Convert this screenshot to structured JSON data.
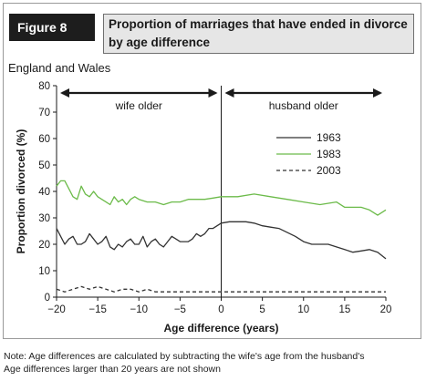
{
  "figure_label": "Figure 8",
  "title_lines": [
    "Proportion of marriages that have ended in divorce",
    "by age difference"
  ],
  "region": "England and Wales",
  "notes": [
    "Note: Age differences are calculated by subtracting the wife's age from the husband's",
    "Age differences larger than 20 years are not shown"
  ],
  "colors": {
    "s1963": "#333333",
    "s1983": "#6cbb4a",
    "s2003": "#333333"
  },
  "chart_data": {
    "type": "line",
    "title": "Proportion of marriages that have ended in divorce by age difference",
    "xlabel": "Age difference (years)",
    "ylabel": "Proportion divorced (%)",
    "xlim": [
      -20,
      20
    ],
    "ylim": [
      0,
      80
    ],
    "xticks": [
      -20,
      -15,
      -10,
      -5,
      0,
      5,
      10,
      15,
      20
    ],
    "xtick_labels": [
      "−20",
      "−15",
      "−10",
      "−5",
      "0",
      "5",
      "10",
      "15",
      "20"
    ],
    "yticks": [
      0,
      10,
      20,
      30,
      40,
      50,
      60,
      70,
      80
    ],
    "grid": false,
    "legend": "right",
    "annotations": [
      {
        "text": "wife older",
        "from": -20,
        "to": 0
      },
      {
        "text": "husband older",
        "from": 0,
        "to": 20
      }
    ],
    "series": [
      {
        "name": "1963",
        "style": "solid",
        "x": [
          -20,
          -19.5,
          -19,
          -18.5,
          -18,
          -17.5,
          -17,
          -16.5,
          -16,
          -15.5,
          -15,
          -14.5,
          -14,
          -13.5,
          -13,
          -12.5,
          -12,
          -11.5,
          -11,
          -10.5,
          -10,
          -9.5,
          -9,
          -8.5,
          -8,
          -7.5,
          -7,
          -6.5,
          -6,
          -5.5,
          -5,
          -4.5,
          -4,
          -3.5,
          -3,
          -2.5,
          -2,
          -1.5,
          -1,
          -0.5,
          0,
          1,
          2,
          3,
          4,
          5,
          6,
          7,
          8,
          9,
          10,
          11,
          12,
          13,
          14,
          15,
          16,
          17,
          18,
          19,
          20
        ],
        "values": [
          26,
          23,
          20,
          22,
          23,
          20,
          20,
          21,
          24,
          22,
          20,
          21,
          23,
          19,
          18,
          20,
          19,
          21,
          22,
          20,
          20,
          23,
          19,
          21,
          22,
          20,
          19,
          21,
          23,
          22,
          21,
          21,
          21,
          22,
          24,
          23,
          24,
          26,
          26,
          27,
          28,
          28.5,
          28.5,
          28.5,
          28,
          27,
          26.5,
          26,
          24.5,
          23,
          21,
          20,
          20,
          20,
          19,
          18,
          17,
          17.5,
          18,
          17,
          14.5
        ]
      },
      {
        "name": "1983",
        "style": "solid",
        "x": [
          -20,
          -19.5,
          -19,
          -18.5,
          -18,
          -17.5,
          -17,
          -16.5,
          -16,
          -15.5,
          -15,
          -14.5,
          -14,
          -13.5,
          -13,
          -12.5,
          -12,
          -11.5,
          -11,
          -10.5,
          -10,
          -9,
          -8,
          -7,
          -6,
          -5,
          -4,
          -3,
          -2,
          -1,
          0,
          2,
          4,
          6,
          8,
          10,
          12,
          14,
          15,
          16,
          17,
          18,
          19,
          19.5,
          20
        ],
        "values": [
          42,
          44,
          44,
          41,
          38,
          37,
          42,
          39,
          38,
          40,
          38,
          37,
          36,
          35,
          38,
          36,
          37,
          35,
          37,
          38,
          37,
          36,
          36,
          35,
          36,
          36,
          37,
          37,
          37,
          37.5,
          38,
          38,
          39,
          38,
          37,
          36,
          35,
          36,
          34,
          34,
          34,
          33,
          31,
          32,
          33
        ]
      },
      {
        "name": "2003",
        "style": "dashed",
        "x": [
          -20,
          -19,
          -18,
          -17,
          -16,
          -15,
          -14,
          -13,
          -12,
          -11,
          -10,
          -9,
          -8,
          -7,
          -6,
          -5,
          -4,
          -3,
          -2,
          -1,
          0,
          2,
          4,
          6,
          8,
          10,
          12,
          14,
          16,
          18,
          20
        ],
        "values": [
          3,
          2,
          3,
          4,
          3,
          4,
          3,
          2,
          3,
          3,
          2,
          3,
          2,
          2,
          2,
          2,
          2,
          2,
          2,
          2,
          2,
          2,
          2,
          2,
          2,
          2,
          2,
          2,
          2,
          2,
          2
        ]
      }
    ]
  }
}
